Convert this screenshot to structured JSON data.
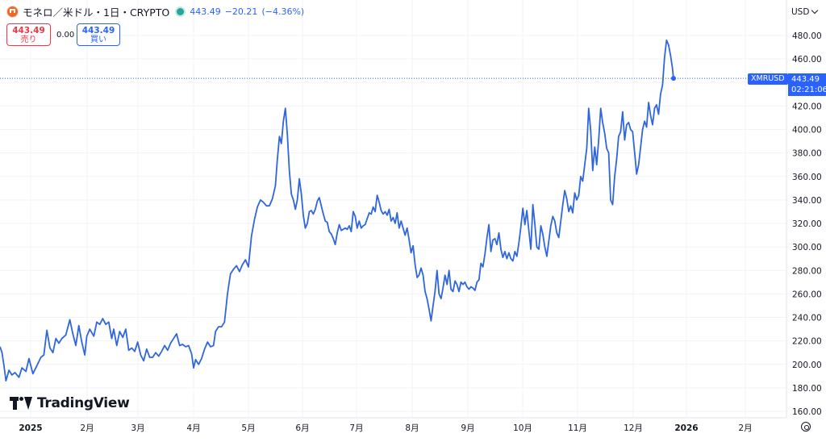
{
  "header": {
    "title": "モネロ／米ドル・1日・CRYPTO",
    "price": "443.49",
    "change": "−20.21",
    "change_pct": "(−4.36%)",
    "icon": "monero-coin-icon"
  },
  "trade": {
    "sell_price": "443.49",
    "sell_label": "売り",
    "spread": "0.00",
    "buy_price": "443.49",
    "buy_label": "買い"
  },
  "currency_select": "USD",
  "last_price_tag": {
    "symbol": "XMRUSD",
    "price": "443.49",
    "countdown": "02:21:06"
  },
  "branding": {
    "name": "TradingView"
  },
  "colors": {
    "line": "#2f66dd",
    "accent": "#2962ff",
    "sell": "#f23645",
    "live": "#26a69a",
    "grid": "#f0f3fa"
  },
  "chart_data": {
    "type": "line",
    "series": [
      {
        "values": [
          [
            0,
            215
          ],
          [
            2,
            210
          ],
          [
            4,
            199
          ],
          [
            6,
            186
          ],
          [
            9,
            195
          ],
          [
            12,
            191
          ],
          [
            15,
            193
          ],
          [
            19,
            189
          ],
          [
            22,
            197
          ],
          [
            26,
            194
          ],
          [
            29,
            205
          ],
          [
            33,
            192
          ],
          [
            37,
            199
          ],
          [
            41,
            206
          ],
          [
            44,
            208
          ],
          [
            47,
            229
          ],
          [
            50,
            214
          ],
          [
            53,
            210
          ],
          [
            56,
            222
          ],
          [
            59,
            218
          ],
          [
            62,
            222
          ],
          [
            66,
            225
          ],
          [
            70,
            238
          ],
          [
            73,
            226
          ],
          [
            76,
            216
          ],
          [
            79,
            233
          ],
          [
            82,
            219
          ],
          [
            85,
            208
          ],
          [
            87,
            224
          ],
          [
            90,
            230
          ],
          [
            94,
            224
          ],
          [
            97,
            236
          ],
          [
            100,
            234
          ],
          [
            103,
            239
          ],
          [
            106,
            234
          ],
          [
            109,
            236
          ],
          [
            112,
            222
          ],
          [
            114,
            230
          ],
          [
            117,
            216
          ],
          [
            120,
            228
          ],
          [
            123,
            223
          ],
          [
            126,
            230
          ],
          [
            129,
            212
          ],
          [
            132,
            214
          ],
          [
            135,
            211
          ],
          [
            138,
            219
          ],
          [
            141,
            208
          ],
          [
            144,
            203
          ],
          [
            147,
            213
          ],
          [
            150,
            206
          ],
          [
            153,
            206
          ],
          [
            156,
            210
          ],
          [
            159,
            207
          ],
          [
            162,
            211
          ],
          [
            165,
            216
          ],
          [
            168,
            212
          ],
          [
            171,
            218
          ],
          [
            174,
            222
          ],
          [
            177,
            226
          ],
          [
            180,
            216
          ],
          [
            183,
            217
          ],
          [
            186,
            215
          ],
          [
            189,
            216
          ],
          [
            192,
            209
          ],
          [
            194,
            197
          ],
          [
            196,
            204
          ],
          [
            199,
            200
          ],
          [
            202,
            205
          ],
          [
            205,
            213
          ],
          [
            208,
            219
          ],
          [
            211,
            215
          ],
          [
            214,
            216
          ],
          [
            216,
            228
          ],
          [
            219,
            232
          ],
          [
            222,
            232
          ],
          [
            225,
            236
          ],
          [
            228,
            260
          ],
          [
            231,
            277
          ],
          [
            234,
            281
          ],
          [
            237,
            284
          ],
          [
            240,
            279
          ],
          [
            243,
            285
          ],
          [
            246,
            289
          ],
          [
            249,
            283
          ],
          [
            252,
            309
          ],
          [
            255,
            323
          ],
          [
            258,
            334
          ],
          [
            261,
            340
          ],
          [
            264,
            338
          ],
          [
            267,
            335
          ],
          [
            270,
            335
          ],
          [
            273,
            341
          ],
          [
            276,
            352
          ],
          [
            278,
            375
          ],
          [
            280,
            394
          ],
          [
            282,
            388
          ],
          [
            284,
            407
          ],
          [
            286,
            418
          ],
          [
            288,
            395
          ],
          [
            290,
            365
          ],
          [
            292,
            345
          ],
          [
            294,
            340
          ],
          [
            296,
            332
          ],
          [
            298,
            340
          ],
          [
            300,
            358
          ],
          [
            302,
            345
          ],
          [
            304,
            327
          ],
          [
            306,
            316
          ],
          [
            308,
            320
          ],
          [
            310,
            330
          ],
          [
            312,
            331
          ],
          [
            314,
            328
          ],
          [
            316,
            332
          ],
          [
            318,
            339
          ],
          [
            320,
            342
          ],
          [
            322,
            335
          ],
          [
            324,
            328
          ],
          [
            326,
            322
          ],
          [
            328,
            321
          ],
          [
            330,
            313
          ],
          [
            332,
            311
          ],
          [
            334,
            307
          ],
          [
            336,
            302
          ],
          [
            338,
            312
          ],
          [
            340,
            319
          ],
          [
            342,
            314
          ],
          [
            344,
            315
          ],
          [
            346,
            316
          ],
          [
            348,
            315
          ],
          [
            350,
            318
          ],
          [
            352,
            313
          ],
          [
            354,
            330
          ],
          [
            356,
            326
          ],
          [
            358,
            316
          ],
          [
            360,
            322
          ],
          [
            362,
            316
          ],
          [
            364,
            318
          ],
          [
            366,
            319
          ],
          [
            368,
            324
          ],
          [
            370,
            329
          ],
          [
            372,
            328
          ],
          [
            374,
            334
          ],
          [
            376,
            330
          ],
          [
            378,
            344
          ],
          [
            380,
            338
          ],
          [
            382,
            331
          ],
          [
            384,
            328
          ],
          [
            386,
            330
          ],
          [
            388,
            327
          ],
          [
            390,
            332
          ],
          [
            392,
            322
          ],
          [
            394,
            325
          ],
          [
            396,
            320
          ],
          [
            398,
            329
          ],
          [
            400,
            316
          ],
          [
            402,
            322
          ],
          [
            404,
            316
          ],
          [
            406,
            310
          ],
          [
            408,
            316
          ],
          [
            410,
            306
          ],
          [
            412,
            295
          ],
          [
            414,
            301
          ],
          [
            416,
            285
          ],
          [
            418,
            274
          ],
          [
            420,
            276
          ],
          [
            422,
            282
          ],
          [
            424,
            276
          ],
          [
            426,
            262
          ],
          [
            428,
            256
          ],
          [
            430,
            247
          ],
          [
            432,
            237
          ],
          [
            434,
            250
          ],
          [
            436,
            262
          ],
          [
            438,
            280
          ],
          [
            440,
            260
          ],
          [
            442,
            256
          ],
          [
            444,
            265
          ],
          [
            446,
            276
          ],
          [
            448,
            268
          ],
          [
            450,
            280
          ],
          [
            452,
            264
          ],
          [
            454,
            262
          ],
          [
            456,
            271
          ],
          [
            458,
            268
          ],
          [
            460,
            262
          ],
          [
            462,
            270
          ],
          [
            464,
            268
          ],
          [
            466,
            270
          ],
          [
            468,
            266
          ],
          [
            470,
            264
          ],
          [
            472,
            266
          ],
          [
            474,
            265
          ],
          [
            476,
            263
          ],
          [
            478,
            270
          ],
          [
            480,
            272
          ],
          [
            482,
            286
          ],
          [
            484,
            283
          ],
          [
            486,
            294
          ],
          [
            488,
            308
          ],
          [
            490,
            319
          ],
          [
            492,
            296
          ],
          [
            494,
            306
          ],
          [
            496,
            307
          ],
          [
            498,
            302
          ],
          [
            500,
            312
          ],
          [
            502,
            298
          ],
          [
            504,
            291
          ],
          [
            506,
            296
          ],
          [
            508,
            290
          ],
          [
            510,
            295
          ],
          [
            512,
            290
          ],
          [
            514,
            288
          ],
          [
            516,
            296
          ],
          [
            518,
            292
          ],
          [
            520,
            303
          ],
          [
            522,
            317
          ],
          [
            524,
            333
          ],
          [
            526,
            319
          ],
          [
            528,
            331
          ],
          [
            530,
            314
          ],
          [
            532,
            298
          ],
          [
            534,
            336
          ],
          [
            536,
            320
          ],
          [
            538,
            300
          ],
          [
            540,
            298
          ],
          [
            542,
            318
          ],
          [
            544,
            311
          ],
          [
            546,
            300
          ],
          [
            548,
            292
          ],
          [
            550,
            305
          ],
          [
            552,
            318
          ],
          [
            554,
            326
          ],
          [
            556,
            322
          ],
          [
            558,
            312
          ],
          [
            560,
            308
          ],
          [
            562,
            322
          ],
          [
            564,
            336
          ],
          [
            566,
            348
          ],
          [
            568,
            341
          ],
          [
            570,
            330
          ],
          [
            572,
            335
          ],
          [
            574,
            329
          ],
          [
            576,
            346
          ],
          [
            578,
            340
          ],
          [
            580,
            344
          ],
          [
            582,
            360
          ],
          [
            584,
            356
          ],
          [
            586,
            370
          ],
          [
            588,
            384
          ],
          [
            590,
            418
          ],
          [
            592,
            399
          ],
          [
            594,
            365
          ],
          [
            596,
            385
          ],
          [
            598,
            370
          ],
          [
            600,
            391
          ],
          [
            602,
            418
          ],
          [
            604,
            406
          ],
          [
            606,
            397
          ],
          [
            608,
            384
          ],
          [
            610,
            380
          ],
          [
            612,
            340
          ],
          [
            614,
            336
          ],
          [
            616,
            360
          ],
          [
            618,
            375
          ],
          [
            620,
            394
          ],
          [
            622,
            398
          ],
          [
            624,
            415
          ],
          [
            626,
            391
          ],
          [
            628,
            404
          ],
          [
            630,
            406
          ],
          [
            632,
            400
          ],
          [
            634,
            398
          ],
          [
            636,
            381
          ],
          [
            638,
            362
          ],
          [
            640,
            370
          ],
          [
            642,
            385
          ],
          [
            644,
            400
          ],
          [
            646,
            407
          ],
          [
            648,
            402
          ],
          [
            650,
            423
          ],
          [
            652,
            412
          ],
          [
            654,
            404
          ],
          [
            656,
            418
          ],
          [
            658,
            421
          ],
          [
            660,
            413
          ],
          [
            662,
            430
          ],
          [
            664,
            438
          ],
          [
            666,
            461
          ],
          [
            668,
            476
          ],
          [
            670,
            472
          ],
          [
            672,
            463
          ],
          [
            674,
            452
          ],
          [
            675,
            443
          ]
        ]
      }
    ],
    "x_ticks": [
      "2025",
      "2月",
      "3月",
      "4月",
      "5月",
      "6月",
      "7月",
      "8月",
      "9月",
      "10月",
      "11月",
      "12月",
      "2026",
      "2月"
    ],
    "y_ticks": [
      "160.00",
      "180.00",
      "200.00",
      "220.00",
      "240.00",
      "260.00",
      "280.00",
      "300.00",
      "320.00",
      "340.00",
      "360.00",
      "380.00",
      "400.00",
      "420.00",
      "440.00",
      "460.00",
      "480.00"
    ],
    "last_value": 443.49,
    "grid": true
  }
}
